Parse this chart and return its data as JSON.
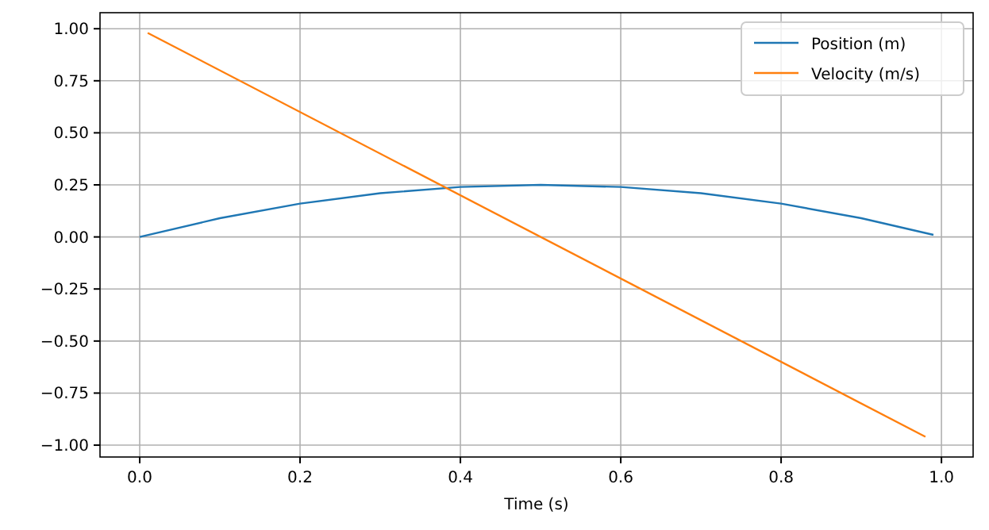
{
  "chart_data": {
    "type": "line",
    "xlabel": "Time (s)",
    "xlim": [
      -0.0495,
      1.0395
    ],
    "ylim": [
      -1.057,
      1.077
    ],
    "xticks": [
      {
        "value": 0,
        "label": "0.0"
      },
      {
        "value": 0.2,
        "label": "0.2"
      },
      {
        "value": 0.4,
        "label": "0.4"
      },
      {
        "value": 0.6,
        "label": "0.6"
      },
      {
        "value": 0.8,
        "label": "0.8"
      },
      {
        "value": 1,
        "label": "1.0"
      }
    ],
    "yticks": [
      {
        "value": -1,
        "label": "−1.00"
      },
      {
        "value": -0.75,
        "label": "−0.75"
      },
      {
        "value": -0.5,
        "label": "−0.50"
      },
      {
        "value": -0.25,
        "label": "−0.25"
      },
      {
        "value": 0,
        "label": "0.00"
      },
      {
        "value": 0.25,
        "label": "0.25"
      },
      {
        "value": 0.5,
        "label": "0.50"
      },
      {
        "value": 0.75,
        "label": "0.75"
      },
      {
        "value": 1,
        "label": "1.00"
      }
    ],
    "grid": true,
    "legend": "top right",
    "series": [
      {
        "name": "Position (m)",
        "color": "#1f77b4",
        "x": [
          0,
          0.1,
          0.2,
          0.3,
          0.4,
          0.5,
          0.6,
          0.7,
          0.8,
          0.9,
          0.99
        ],
        "values": [
          0,
          0.09,
          0.16,
          0.21,
          0.24,
          0.25,
          0.24,
          0.21,
          0.16,
          0.09,
          0.01
        ]
      },
      {
        "name": "Velocity (m/s)",
        "color": "#ff7f0e",
        "x": [
          0.01,
          0.98
        ],
        "values": [
          0.98,
          -0.96
        ]
      }
    ]
  }
}
